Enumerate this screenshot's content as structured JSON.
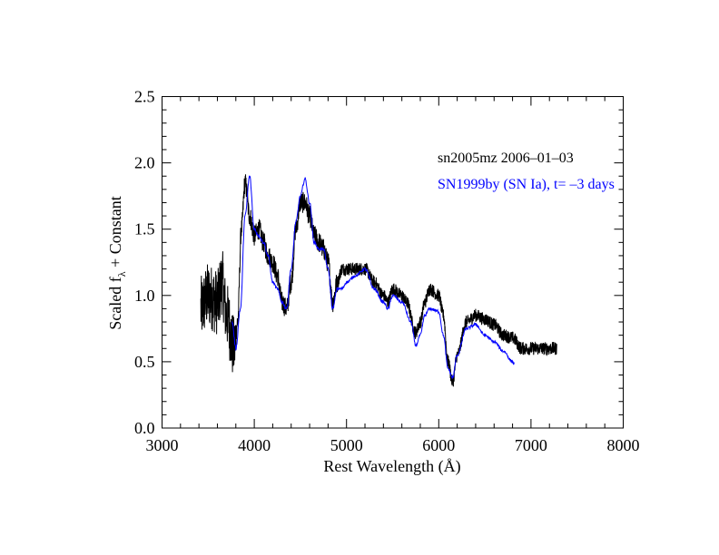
{
  "chart_data": {
    "type": "line",
    "title": "",
    "xlabel": "Rest Wavelength (Å)",
    "ylabel_main": "Scaled f",
    "ylabel_sub": "λ",
    "ylabel_tail": " + Constant",
    "xlim": [
      3000,
      8000
    ],
    "ylim": [
      0.0,
      2.5
    ],
    "xticks": [
      3000,
      4000,
      5000,
      6000,
      7000,
      8000
    ],
    "xtick_labels": [
      "3000",
      "4000",
      "5000",
      "6000",
      "7000",
      "8000"
    ],
    "yticks": [
      0.0,
      0.5,
      1.0,
      1.5,
      2.0,
      2.5
    ],
    "ytick_labels": [
      "0.0",
      "0.5",
      "1.0",
      "1.5",
      "2.0",
      "2.5"
    ],
    "x_minor_step": 200,
    "y_minor_step": 0.1,
    "grid": false,
    "legend_position": "top-right",
    "series": [
      {
        "name": "sn2005mz  2006–01–03",
        "color": "#000000",
        "noise": [
          [
            3800,
            0.25
          ],
          [
            4900,
            0.08
          ],
          [
            8000,
            0.05
          ]
        ],
        "points": [
          [
            3420,
            0.9
          ],
          [
            3500,
            1.0
          ],
          [
            3600,
            0.95
          ],
          [
            3650,
            1.1
          ],
          [
            3700,
            0.85
          ],
          [
            3780,
            0.6
          ],
          [
            3820,
            0.8
          ],
          [
            3860,
            1.5
          ],
          [
            3900,
            1.85
          ],
          [
            3950,
            1.6
          ],
          [
            4000,
            1.45
          ],
          [
            4050,
            1.5
          ],
          [
            4100,
            1.4
          ],
          [
            4150,
            1.3
          ],
          [
            4200,
            1.25
          ],
          [
            4250,
            1.15
          ],
          [
            4300,
            0.95
          ],
          [
            4350,
            0.9
          ],
          [
            4400,
            1.1
          ],
          [
            4450,
            1.5
          ],
          [
            4500,
            1.7
          ],
          [
            4550,
            1.7
          ],
          [
            4600,
            1.6
          ],
          [
            4650,
            1.45
          ],
          [
            4700,
            1.4
          ],
          [
            4750,
            1.35
          ],
          [
            4800,
            1.25
          ],
          [
            4850,
            0.95
          ],
          [
            4900,
            1.1
          ],
          [
            4950,
            1.2
          ],
          [
            5000,
            1.2
          ],
          [
            5100,
            1.2
          ],
          [
            5200,
            1.2
          ],
          [
            5300,
            1.1
          ],
          [
            5400,
            1.0
          ],
          [
            5450,
            0.95
          ],
          [
            5500,
            1.05
          ],
          [
            5600,
            1.0
          ],
          [
            5650,
            0.95
          ],
          [
            5750,
            0.72
          ],
          [
            5800,
            0.8
          ],
          [
            5850,
            0.95
          ],
          [
            5900,
            1.05
          ],
          [
            6000,
            1.0
          ],
          [
            6050,
            0.85
          ],
          [
            6100,
            0.5
          ],
          [
            6150,
            0.35
          ],
          [
            6200,
            0.55
          ],
          [
            6300,
            0.8
          ],
          [
            6400,
            0.85
          ],
          [
            6500,
            0.82
          ],
          [
            6600,
            0.78
          ],
          [
            6700,
            0.7
          ],
          [
            6800,
            0.68
          ],
          [
            6900,
            0.6
          ],
          [
            7000,
            0.6
          ],
          [
            7100,
            0.6
          ],
          [
            7200,
            0.6
          ],
          [
            7280,
            0.6
          ]
        ]
      },
      {
        "name": "SN1999by (SN Ia), t= –3 days",
        "color": "#0000ff",
        "noise": [
          [
            8000,
            0.012
          ]
        ],
        "points": [
          [
            3760,
            0.8
          ],
          [
            3800,
            0.6
          ],
          [
            3850,
            0.9
          ],
          [
            3900,
            1.6
          ],
          [
            3950,
            1.9
          ],
          [
            4000,
            1.5
          ],
          [
            4050,
            1.45
          ],
          [
            4100,
            1.4
          ],
          [
            4150,
            1.3
          ],
          [
            4200,
            1.1
          ],
          [
            4250,
            1.05
          ],
          [
            4300,
            0.95
          ],
          [
            4350,
            0.9
          ],
          [
            4400,
            1.2
          ],
          [
            4450,
            1.55
          ],
          [
            4500,
            1.75
          ],
          [
            4550,
            1.88
          ],
          [
            4600,
            1.7
          ],
          [
            4650,
            1.4
          ],
          [
            4700,
            1.35
          ],
          [
            4750,
            1.35
          ],
          [
            4800,
            1.2
          ],
          [
            4850,
            0.9
          ],
          [
            4900,
            1.05
          ],
          [
            4950,
            1.05
          ],
          [
            5000,
            1.1
          ],
          [
            5100,
            1.15
          ],
          [
            5200,
            1.2
          ],
          [
            5300,
            1.05
          ],
          [
            5400,
            0.95
          ],
          [
            5450,
            0.9
          ],
          [
            5500,
            1.0
          ],
          [
            5600,
            0.95
          ],
          [
            5700,
            0.8
          ],
          [
            5750,
            0.62
          ],
          [
            5800,
            0.7
          ],
          [
            5850,
            0.85
          ],
          [
            5900,
            0.9
          ],
          [
            6000,
            0.88
          ],
          [
            6050,
            0.7
          ],
          [
            6100,
            0.45
          ],
          [
            6150,
            0.38
          ],
          [
            6200,
            0.55
          ],
          [
            6300,
            0.75
          ],
          [
            6400,
            0.78
          ],
          [
            6500,
            0.7
          ],
          [
            6600,
            0.65
          ],
          [
            6700,
            0.58
          ],
          [
            6800,
            0.5
          ],
          [
            6820,
            0.48
          ]
        ]
      }
    ]
  }
}
